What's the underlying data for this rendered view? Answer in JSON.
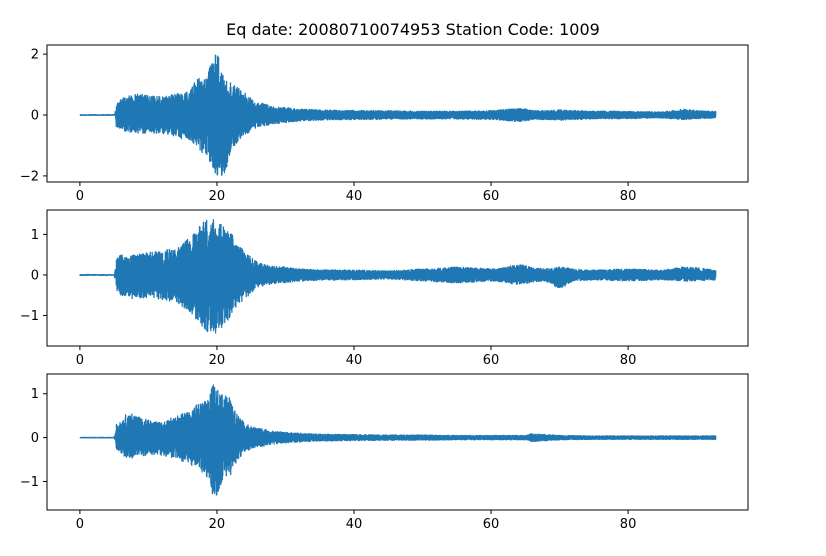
{
  "title": "Eq date: 20080710074953  Station Code: 1009",
  "chart_data": [
    {
      "type": "line",
      "title": "",
      "xlabel": "",
      "ylabel": "",
      "xlim": [
        -4.8,
        97.5
      ],
      "ylim": [
        -2.2,
        2.3
      ],
      "xticks": [
        0,
        20,
        40,
        60,
        80
      ],
      "yticks": [
        -2,
        0,
        2
      ],
      "grid": false,
      "color": "#1f77b4",
      "duration": 92.8,
      "onset": 5.3,
      "series": [
        {
          "envelope_times": [
            0,
            5.0,
            5.3,
            6,
            8,
            10,
            12,
            14,
            16,
            17,
            18,
            19,
            19.5,
            20,
            21,
            22,
            23,
            24,
            25,
            26,
            28,
            30,
            32,
            35,
            40,
            45,
            50,
            55,
            60,
            63,
            64,
            65,
            66,
            68,
            70,
            72,
            75,
            80,
            85,
            88,
            90,
            92.8
          ],
          "envelope_max": [
            0.02,
            0.02,
            0.35,
            0.55,
            0.7,
            0.65,
            0.6,
            0.7,
            0.8,
            1.2,
            1.3,
            1.6,
            1.8,
            2.15,
            1.3,
            1.1,
            0.9,
            0.75,
            0.55,
            0.45,
            0.3,
            0.25,
            0.2,
            0.17,
            0.15,
            0.14,
            0.13,
            0.13,
            0.15,
            0.2,
            0.22,
            0.2,
            0.15,
            0.15,
            0.17,
            0.15,
            0.13,
            0.12,
            0.1,
            0.2,
            0.15,
            0.12
          ],
          "envelope_min": [
            -0.02,
            -0.02,
            -0.4,
            -0.5,
            -0.6,
            -0.6,
            -0.6,
            -0.7,
            -0.9,
            -1.0,
            -1.3,
            -1.6,
            -1.8,
            -2.0,
            -2.1,
            -1.2,
            -0.9,
            -0.7,
            -0.5,
            -0.4,
            -0.3,
            -0.25,
            -0.2,
            -0.17,
            -0.15,
            -0.14,
            -0.13,
            -0.13,
            -0.15,
            -0.2,
            -0.22,
            -0.2,
            -0.15,
            -0.15,
            -0.17,
            -0.15,
            -0.13,
            -0.12,
            -0.1,
            -0.15,
            -0.12,
            -0.1
          ]
        }
      ]
    },
    {
      "type": "line",
      "title": "",
      "xlabel": "",
      "ylabel": "",
      "xlim": [
        -4.8,
        97.5
      ],
      "ylim": [
        -1.75,
        1.6
      ],
      "xticks": [
        0,
        20,
        40,
        60,
        80
      ],
      "yticks": [
        -1,
        0,
        1
      ],
      "grid": false,
      "color": "#1f77b4",
      "duration": 92.8,
      "onset": 5.3,
      "series": [
        {
          "envelope_times": [
            0,
            5.0,
            5.3,
            6,
            8,
            10,
            12,
            14,
            16,
            17,
            18,
            19,
            20,
            21,
            22,
            23,
            24,
            25,
            26,
            28,
            30,
            32,
            35,
            40,
            45,
            50,
            55,
            60,
            62,
            64,
            66,
            68,
            70,
            72,
            75,
            80,
            85,
            88,
            90,
            92.8
          ],
          "envelope_max": [
            0.02,
            0.02,
            0.4,
            0.5,
            0.5,
            0.55,
            0.6,
            0.7,
            0.9,
            1.1,
            1.3,
            1.4,
            1.35,
            1.2,
            1.1,
            0.8,
            0.6,
            0.45,
            0.3,
            0.22,
            0.2,
            0.15,
            0.13,
            0.12,
            0.1,
            0.15,
            0.2,
            0.15,
            0.18,
            0.28,
            0.18,
            0.15,
            0.2,
            0.15,
            0.12,
            0.15,
            0.12,
            0.2,
            0.18,
            0.12
          ],
          "envelope_min": [
            -0.02,
            -0.02,
            -0.45,
            -0.5,
            -0.6,
            -0.55,
            -0.6,
            -0.7,
            -0.9,
            -1.1,
            -1.3,
            -1.6,
            -1.4,
            -1.3,
            -1.0,
            -0.8,
            -0.6,
            -0.45,
            -0.3,
            -0.22,
            -0.2,
            -0.15,
            -0.13,
            -0.12,
            -0.1,
            -0.15,
            -0.2,
            -0.15,
            -0.18,
            -0.25,
            -0.18,
            -0.15,
            -0.35,
            -0.15,
            -0.12,
            -0.15,
            -0.12,
            -0.15,
            -0.15,
            -0.12
          ]
        }
      ]
    },
    {
      "type": "line",
      "title": "",
      "xlabel": "",
      "ylabel": "",
      "xlim": [
        -4.8,
        97.5
      ],
      "ylim": [
        -1.65,
        1.45
      ],
      "xticks": [
        0,
        20,
        40,
        60,
        80
      ],
      "yticks": [
        -1,
        0,
        1
      ],
      "grid": false,
      "color": "#1f77b4",
      "duration": 92.8,
      "onset": 5.3,
      "series": [
        {
          "envelope_times": [
            0,
            5.0,
            5.3,
            6,
            7,
            8,
            10,
            12,
            14,
            16,
            17,
            18,
            19,
            19.5,
            20,
            21,
            22,
            23,
            24,
            25,
            26,
            28,
            30,
            32,
            35,
            40,
            45,
            50,
            55,
            60,
            65,
            66,
            70,
            75,
            80,
            85,
            90,
            92.8
          ],
          "envelope_max": [
            0.01,
            0.01,
            0.3,
            0.35,
            0.6,
            0.5,
            0.4,
            0.35,
            0.5,
            0.6,
            0.75,
            0.8,
            1.0,
            1.35,
            1.1,
            1.0,
            0.95,
            0.5,
            0.35,
            0.25,
            0.22,
            0.15,
            0.12,
            0.1,
            0.08,
            0.07,
            0.06,
            0.06,
            0.05,
            0.05,
            0.05,
            0.09,
            0.05,
            0.04,
            0.04,
            0.04,
            0.04,
            0.04
          ],
          "envelope_min": [
            -0.01,
            -0.01,
            -0.3,
            -0.35,
            -0.5,
            -0.45,
            -0.4,
            -0.4,
            -0.5,
            -0.6,
            -0.7,
            -0.8,
            -1.0,
            -1.6,
            -1.3,
            -0.9,
            -0.9,
            -0.5,
            -0.35,
            -0.25,
            -0.22,
            -0.15,
            -0.12,
            -0.1,
            -0.08,
            -0.07,
            -0.06,
            -0.06,
            -0.05,
            -0.05,
            -0.05,
            -0.09,
            -0.05,
            -0.04,
            -0.04,
            -0.04,
            -0.04,
            -0.04
          ]
        }
      ]
    }
  ]
}
